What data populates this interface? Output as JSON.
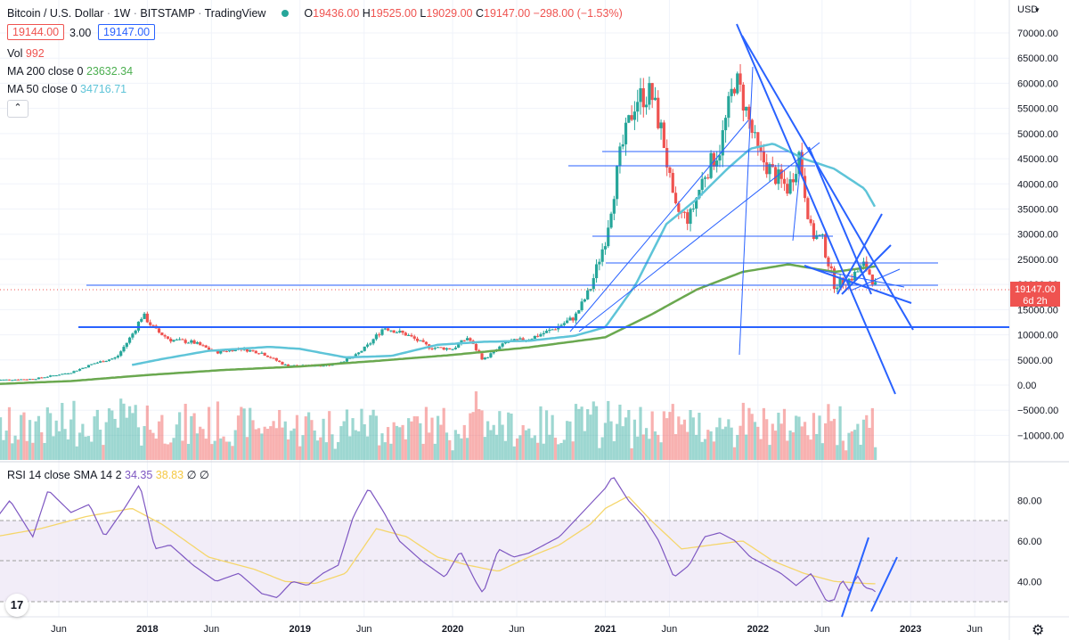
{
  "header": {
    "symbol": "Bitcoin / U.S. Dollar",
    "interval": "1W",
    "exchange": "BITSTAMP",
    "platform": "TradingView",
    "o_label": "O",
    "o_value": "19436.00",
    "h_label": "H",
    "h_value": "19525.00",
    "l_label": "L",
    "l_value": "19029.00",
    "c_label": "C",
    "c_value": "19147.00",
    "change": "−298.00 (−1.53%)",
    "bid": "19144.00",
    "spread": "3.00",
    "ask": "19147.00"
  },
  "indicators": {
    "vol_label": "Vol",
    "vol_value": "992",
    "ma200_label": "MA 200 close 0",
    "ma200_value": "23632.34",
    "ma50_label": "MA 50 close 0",
    "ma50_value": "34716.71",
    "rsi_label": "RSI 14 close SMA 14 2",
    "rsi_value": "34.35",
    "rsi_sma_value": "38.83",
    "rsi_extra": "∅ ∅"
  },
  "price_axis": {
    "currency": "USD",
    "last_price": "19147.00",
    "countdown": "6d 2h"
  },
  "colors": {
    "up": "#26a69a",
    "down": "#ef5350",
    "ma50": "#5ec4d8",
    "ma200": "#6aa84f",
    "drawing": "#2962ff",
    "rsi": "#7e57c2",
    "rsi_sma": "#f5d66b",
    "rsi_band": "#ede7f6"
  },
  "chart_data": [
    {
      "type": "candlestick",
      "title": "Bitcoin / U.S. Dollar · 1W · BITSTAMP",
      "y_ticks": [
        70000,
        65000,
        60000,
        55000,
        50000,
        45000,
        40000,
        35000,
        30000,
        25000,
        20000,
        15000,
        10000,
        5000,
        0,
        -5000,
        -10000
      ],
      "y_tick_labels": [
        "70000.00",
        "65000.00",
        "60000.00",
        "55000.00",
        "50000.00",
        "45000.00",
        "40000.00",
        "35000.00",
        "30000.00",
        "25000.00",
        "20000.00",
        "15000.00",
        "10000.00",
        "5000.00",
        "0.00",
        "−5000.00",
        "−10000.00"
      ],
      "ylim": [
        -12000,
        74000
      ],
      "x_tick_labels": [
        "Jun",
        "2018",
        "Jun",
        "2019",
        "Jun",
        "2020",
        "Jun",
        "2021",
        "Jun",
        "2022",
        "Jun",
        "2023",
        "Jun"
      ],
      "x_tick_dates": [
        2017.42,
        2018.0,
        2018.42,
        2019.0,
        2019.42,
        2020.0,
        2020.42,
        2021.0,
        2021.42,
        2022.0,
        2022.42,
        2023.0,
        2023.42
      ],
      "series": [
        {
          "name": "BTCUSD close",
          "x": [
            2017.0,
            2017.25,
            2017.5,
            2017.65,
            2017.8,
            2017.9,
            2017.97,
            2018.05,
            2018.15,
            2018.3,
            2018.45,
            2018.6,
            2018.75,
            2018.9,
            2019.0,
            2019.2,
            2019.35,
            2019.45,
            2019.55,
            2019.7,
            2019.85,
            2020.0,
            2020.1,
            2020.2,
            2020.35,
            2020.5,
            2020.65,
            2020.8,
            2020.9,
            2021.0,
            2021.1,
            2021.2,
            2021.3,
            2021.38,
            2021.45,
            2021.55,
            2021.65,
            2021.75,
            2021.85,
            2021.9,
            2022.0,
            2022.1,
            2022.2,
            2022.27,
            2022.35,
            2022.42,
            2022.5,
            2022.6,
            2022.7,
            2022.78
          ],
          "y": [
            1000,
            1200,
            2500,
            4300,
            5500,
            10000,
            14000,
            11000,
            9000,
            8500,
            6500,
            7300,
            6400,
            4000,
            3800,
            4000,
            5500,
            8000,
            11500,
            10000,
            7500,
            7200,
            9500,
            5000,
            8500,
            9200,
            11000,
            13500,
            19000,
            29000,
            46000,
            57000,
            58000,
            49000,
            35000,
            33000,
            42000,
            47000,
            61000,
            57000,
            46000,
            42000,
            39000,
            46000,
            30000,
            29000,
            20000,
            21000,
            24000,
            19147
          ]
        },
        {
          "name": "MA 50",
          "x": [
            2017.9,
            2018.1,
            2018.4,
            2018.8,
            2019.0,
            2019.3,
            2019.6,
            2019.9,
            2020.2,
            2020.5,
            2020.8,
            2021.0,
            2021.2,
            2021.4,
            2021.6,
            2021.8,
            2021.95,
            2022.1,
            2022.3,
            2022.5,
            2022.7,
            2022.78
          ],
          "y": [
            4000,
            5200,
            6800,
            7600,
            7200,
            5500,
            5800,
            8000,
            8600,
            8800,
            9800,
            11500,
            20000,
            32000,
            37000,
            43000,
            47000,
            48000,
            45000,
            43000,
            39000,
            34716
          ]
        },
        {
          "name": "MA 200",
          "x": [
            2017.0,
            2017.5,
            2018.0,
            2018.5,
            2019.0,
            2019.5,
            2020.0,
            2020.5,
            2021.0,
            2021.3,
            2021.6,
            2021.9,
            2022.2,
            2022.5,
            2022.78
          ],
          "y": [
            200,
            800,
            2000,
            3000,
            3700,
            4800,
            6000,
            7500,
            9500,
            14000,
            19000,
            22500,
            24000,
            22500,
            23632
          ]
        }
      ],
      "volume_label": "Vol 992"
    },
    {
      "type": "line",
      "title": "RSI 14 close SMA 14 2",
      "y_ticks": [
        80,
        60,
        40
      ],
      "y_tick_labels": [
        "80.00",
        "60.00",
        "40.00"
      ],
      "ylim": [
        27,
        97
      ],
      "bands": [
        70,
        50,
        30
      ],
      "series": [
        {
          "name": "RSI",
          "x": [
            2017.0,
            2017.1,
            2017.25,
            2017.35,
            2017.5,
            2017.62,
            2017.72,
            2017.85,
            2017.95,
            2018.05,
            2018.15,
            2018.3,
            2018.45,
            2018.6,
            2018.75,
            2018.85,
            2018.95,
            2019.05,
            2019.15,
            2019.25,
            2019.35,
            2019.45,
            2019.55,
            2019.65,
            2019.8,
            2019.95,
            2020.05,
            2020.15,
            2020.2,
            2020.3,
            2020.4,
            2020.5,
            2020.6,
            2020.7,
            2020.8,
            2020.9,
            2021.0,
            2021.05,
            2021.15,
            2021.25,
            2021.35,
            2021.45,
            2021.55,
            2021.65,
            2021.75,
            2021.85,
            2021.95,
            2022.05,
            2022.15,
            2022.25,
            2022.35,
            2022.45,
            2022.5,
            2022.55,
            2022.6,
            2022.65,
            2022.7,
            2022.75,
            2022.78
          ],
          "y": [
            70,
            80,
            62,
            85,
            74,
            78,
            62,
            76,
            88,
            56,
            58,
            48,
            40,
            44,
            34,
            32,
            40,
            38,
            44,
            48,
            72,
            86,
            74,
            60,
            50,
            42,
            55,
            40,
            34,
            56,
            52,
            54,
            58,
            62,
            70,
            78,
            86,
            92,
            80,
            72,
            60,
            42,
            48,
            62,
            64,
            60,
            52,
            48,
            44,
            38,
            44,
            30,
            31,
            41,
            35,
            43,
            37,
            36,
            34.35
          ]
        },
        {
          "name": "RSI SMA",
          "x": [
            2017.0,
            2017.3,
            2017.6,
            2017.9,
            2018.1,
            2018.4,
            2018.7,
            2018.9,
            2019.1,
            2019.3,
            2019.5,
            2019.7,
            2019.9,
            2020.1,
            2020.3,
            2020.5,
            2020.7,
            2020.9,
            2021.0,
            2021.15,
            2021.3,
            2021.5,
            2021.7,
            2021.9,
            2022.1,
            2022.3,
            2022.5,
            2022.7,
            2022.78
          ],
          "y": [
            62,
            66,
            72,
            76,
            68,
            52,
            46,
            40,
            39,
            44,
            66,
            62,
            52,
            48,
            45,
            52,
            58,
            68,
            76,
            82,
            70,
            56,
            58,
            60,
            50,
            44,
            40,
            39,
            38.83
          ]
        }
      ]
    }
  ]
}
